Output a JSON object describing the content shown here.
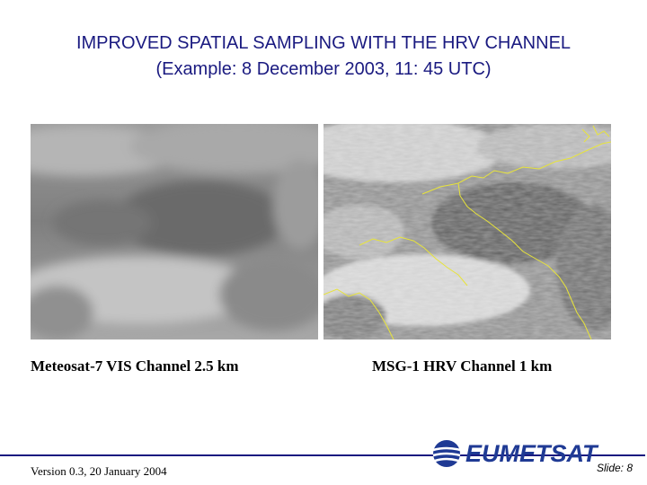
{
  "slide": {
    "title_line1": "IMPROVED SPATIAL SAMPLING WITH THE HRV CHANNEL",
    "title_line2": "(Example: 8 December 2003, 11: 45 UTC)"
  },
  "images": {
    "left_caption": "Meteosat-7 VIS Channel  2.5 km",
    "right_caption": "MSG-1 HRV Channel 1 km"
  },
  "footer": {
    "version": "Version 0.3, 20 January 2004",
    "logo_text": "EUMETSAT",
    "slide_number": "Slide: 8"
  },
  "colors": {
    "title": "#1a1a80",
    "coastline": "#e8e43a",
    "logo": "#1f3a94"
  }
}
